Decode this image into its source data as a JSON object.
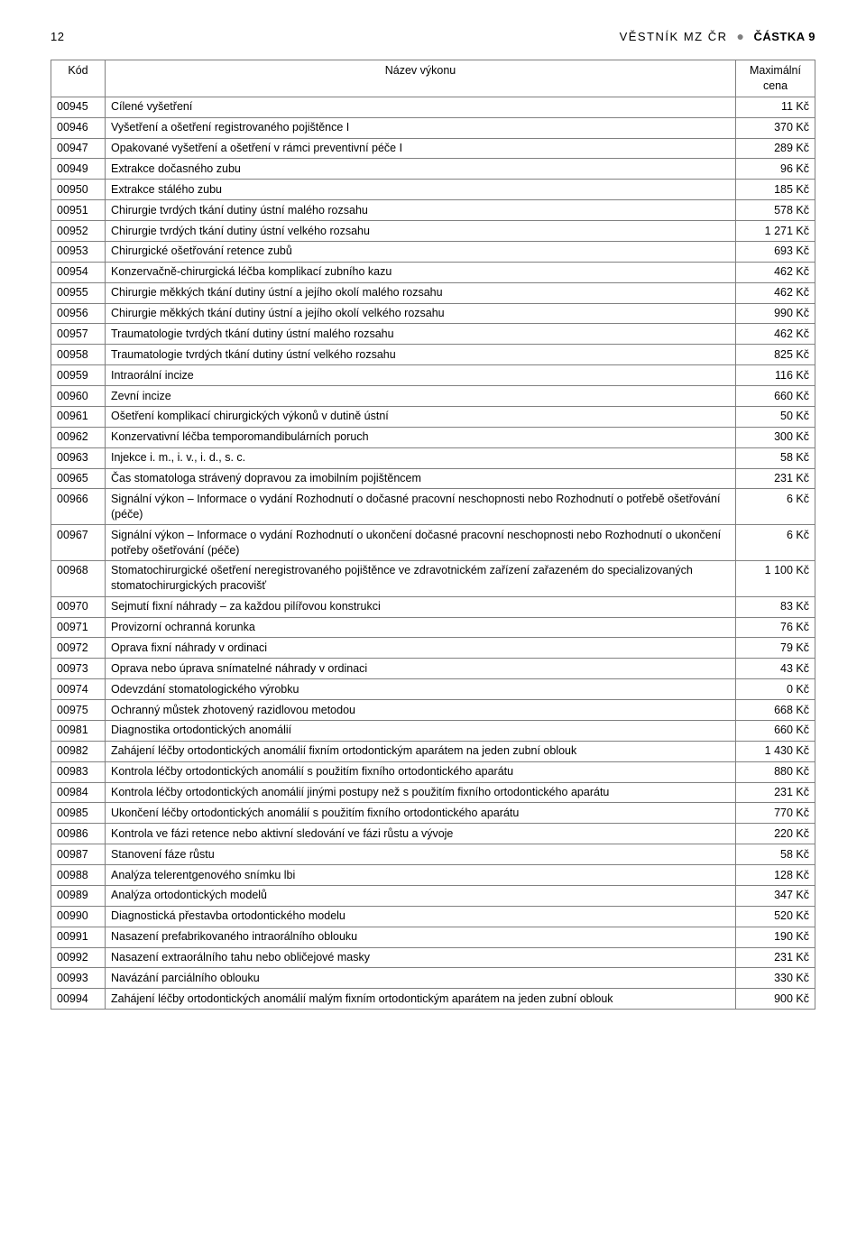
{
  "header": {
    "page_number": "12",
    "vestnik": "VĚSTNÍK MZ ČR",
    "castka": "ČÁSTKA 9"
  },
  "table": {
    "columns": {
      "kod": "Kód",
      "name": "Název výkonu",
      "price": "Maximální\ncena"
    },
    "rows": [
      {
        "kod": "00945",
        "name": "Cílené vyšetření",
        "price": "11 Kč"
      },
      {
        "kod": "00946",
        "name": "Vyšetření a ošetření registrovaného pojištěnce I",
        "price": "370 Kč"
      },
      {
        "kod": "00947",
        "name": "Opakované vyšetření a ošetření v rámci preventivní péče I",
        "price": "289 Kč"
      },
      {
        "kod": "00949",
        "name": "Extrakce dočasného zubu",
        "price": "96 Kč"
      },
      {
        "kod": "00950",
        "name": "Extrakce stálého zubu",
        "price": "185 Kč"
      },
      {
        "kod": "00951",
        "name": "Chirurgie tvrdých tkání dutiny ústní malého rozsahu",
        "price": "578 Kč"
      },
      {
        "kod": "00952",
        "name": "Chirurgie tvrdých tkání dutiny ústní velkého rozsahu",
        "price": "1 271 Kč"
      },
      {
        "kod": "00953",
        "name": "Chirurgické ošetřování retence zubů",
        "price": "693 Kč"
      },
      {
        "kod": "00954",
        "name": "Konzervačně-chirurgická léčba komplikací zubního kazu",
        "price": "462 Kč"
      },
      {
        "kod": "00955",
        "name": "Chirurgie měkkých tkání dutiny ústní a jejího okolí malého rozsahu",
        "price": "462 Kč"
      },
      {
        "kod": "00956",
        "name": "Chirurgie měkkých tkání dutiny ústní a jejího okolí velkého rozsahu",
        "price": "990 Kč"
      },
      {
        "kod": "00957",
        "name": "Traumatologie tvrdých tkání dutiny ústní malého rozsahu",
        "price": "462 Kč"
      },
      {
        "kod": "00958",
        "name": "Traumatologie tvrdých tkání dutiny ústní velkého rozsahu",
        "price": "825 Kč"
      },
      {
        "kod": "00959",
        "name": "Intraorální incize",
        "price": "116 Kč"
      },
      {
        "kod": "00960",
        "name": "Zevní incize",
        "price": "660 Kč"
      },
      {
        "kod": "00961",
        "name": "Ošetření komplikací chirurgických výkonů v dutině ústní",
        "price": "50 Kč"
      },
      {
        "kod": "00962",
        "name": "Konzervativní léčba temporomandibulárních poruch",
        "price": "300 Kč"
      },
      {
        "kod": "00963",
        "name": "Injekce i. m., i. v., i. d., s. c.",
        "price": "58 Kč"
      },
      {
        "kod": "00965",
        "name": "Čas stomatologa strávený dopravou za imobilním pojištěncem",
        "price": "231 Kč"
      },
      {
        "kod": "00966",
        "name": "Signální výkon – Informace o vydání Rozhodnutí o dočasné pracovní neschopnosti nebo Rozhodnutí o potřebě ošetřování (péče)",
        "price": "6 Kč"
      },
      {
        "kod": "00967",
        "name": "Signální výkon – Informace o vydání Rozhodnutí o ukončení dočasné pracovní neschopnosti nebo Rozhodnutí o ukončení potřeby ošetřování (péče)",
        "price": "6 Kč"
      },
      {
        "kod": "00968",
        "name": "Stomatochirurgické ošetření neregistrovaného pojištěnce\nve zdravotnickém zařízení zařazeném do specializovaných stomatochirurgických pracovišť",
        "price": "1 100 Kč"
      },
      {
        "kod": "00970",
        "name": "Sejmutí fixní náhrady – za každou pilířovou konstrukci",
        "price": "83 Kč"
      },
      {
        "kod": "00971",
        "name": "Provizorní ochranná korunka",
        "price": "76 Kč"
      },
      {
        "kod": "00972",
        "name": "Oprava fixní náhrady v ordinaci",
        "price": "79 Kč"
      },
      {
        "kod": "00973",
        "name": "Oprava nebo úprava snímatelné náhrady v ordinaci",
        "price": "43 Kč"
      },
      {
        "kod": "00974",
        "name": "Odevzdání stomatologického výrobku",
        "price": "0 Kč"
      },
      {
        "kod": "00975",
        "name": "Ochranný můstek zhotovený razidlovou metodou",
        "price": "668 Kč"
      },
      {
        "kod": "00981",
        "name": "Diagnostika ortodontických anomálií",
        "price": "660 Kč"
      },
      {
        "kod": "00982",
        "name": "Zahájení léčby ortodontických anomálií fixním ortodontickým aparátem na jeden zubní oblouk",
        "price": "1 430 Kč"
      },
      {
        "kod": "00983",
        "name": "Kontrola léčby ortodontických anomálií s použitím fixního ortodontického aparátu",
        "price": "880 Kč"
      },
      {
        "kod": "00984",
        "name": "Kontrola léčby ortodontických anomálií jinými postupy než s použitím fixního ortodontického aparátu",
        "price": "231 Kč"
      },
      {
        "kod": "00985",
        "name": "Ukončení léčby ortodontických anomálií s použitím fixního ortodontického aparátu",
        "price": "770 Kč"
      },
      {
        "kod": "00986",
        "name": "Kontrola ve fázi retence nebo aktivní sledování ve fázi růstu a vývoje",
        "price": "220 Kč"
      },
      {
        "kod": "00987",
        "name": "Stanovení fáze růstu",
        "price": "58 Kč"
      },
      {
        "kod": "00988",
        "name": "Analýza telerentgenového snímku lbi",
        "price": "128 Kč"
      },
      {
        "kod": "00989",
        "name": "Analýza ortodontických modelů",
        "price": "347 Kč"
      },
      {
        "kod": "00990",
        "name": "Diagnostická přestavba ortodontického modelu",
        "price": "520 Kč"
      },
      {
        "kod": "00991",
        "name": "Nasazení prefabrikovaného intraorálního oblouku",
        "price": "190 Kč"
      },
      {
        "kod": "00992",
        "name": "Nasazení extraorálního tahu nebo obličejové masky",
        "price": "231 Kč"
      },
      {
        "kod": "00993",
        "name": "Navázání parciálního oblouku",
        "price": "330 Kč"
      },
      {
        "kod": "00994",
        "name": "Zahájení léčby ortodontických anomálií malým fixním ortodontickým aparátem na jeden zubní oblouk",
        "price": "900 Kč"
      }
    ]
  }
}
